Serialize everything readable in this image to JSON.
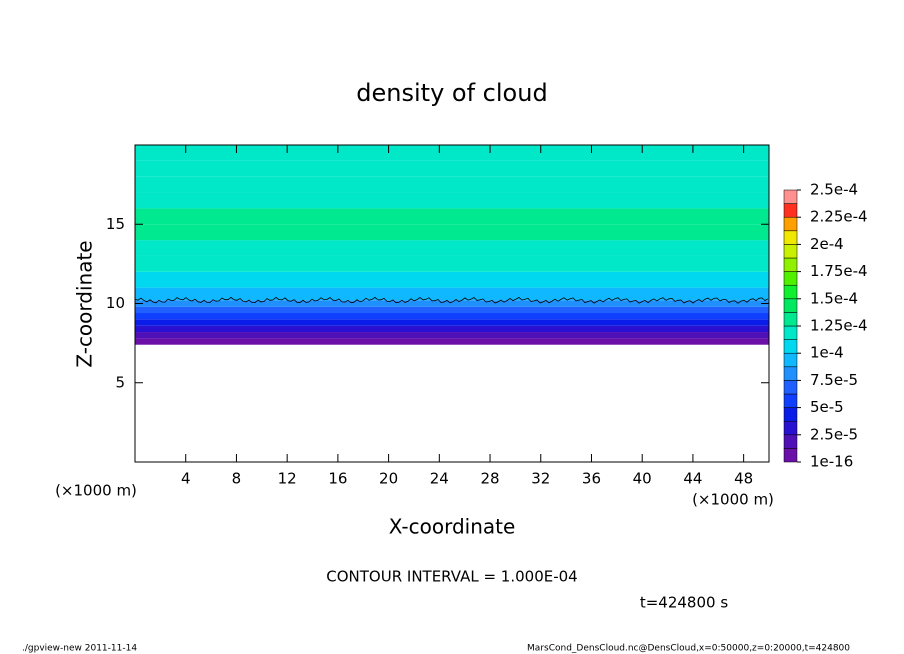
{
  "chart_data": {
    "type": "contour",
    "title": "density of cloud",
    "x_label": "X-coordinate",
    "y_label": "Z-coordinate",
    "x_unit": "(×1000 m)",
    "y_unit": "(×1000 m)",
    "xlim": [
      0,
      50
    ],
    "ylim": [
      0,
      20
    ],
    "xticks": [
      4,
      8,
      12,
      16,
      20,
      24,
      28,
      32,
      36,
      40,
      44,
      48
    ],
    "yticks": [
      5,
      10,
      15
    ],
    "profile": {
      "z": [
        7.4,
        7.8,
        8.2,
        8.6,
        9.0,
        9.4,
        9.8,
        10.2,
        11,
        12,
        13,
        14,
        15,
        16,
        17,
        18,
        19,
        20
      ],
      "values": [
        5e-06,
        2e-05,
        3e-05,
        4.5e-05,
        6e-05,
        7e-05,
        8.5e-05,
        0.0001,
        0.00011,
        0.00012,
        0.000125,
        0.00013,
        0.00013,
        0.000125,
        0.000125,
        0.00012,
        0.000125,
        0.00012
      ]
    },
    "contour_level": 0.0001,
    "colorbar": {
      "ticks": [
        {
          "value": 1e-16,
          "label": "1e-16"
        },
        {
          "value": 2.5e-05,
          "label": "2.5e-5"
        },
        {
          "value": 5e-05,
          "label": "5e-5"
        },
        {
          "value": 7.5e-05,
          "label": "7.5e-5"
        },
        {
          "value": 0.0001,
          "label": "1e-4"
        },
        {
          "value": 0.000125,
          "label": "1.25e-4"
        },
        {
          "value": 0.00015,
          "label": "1.5e-4"
        },
        {
          "value": 0.000175,
          "label": "1.75e-4"
        },
        {
          "value": 0.0002,
          "label": "2e-4"
        },
        {
          "value": 0.000225,
          "label": "2.25e-4"
        },
        {
          "value": 0.00025,
          "label": "2.5e-4"
        }
      ],
      "colors": [
        "#6a10a8",
        "#5010b8",
        "#2a10d0",
        "#0a1ce8",
        "#1040ff",
        "#2060ff",
        "#2090ff",
        "#10b8ff",
        "#00d8f0",
        "#00e8c8",
        "#00e890",
        "#00e860",
        "#10f030",
        "#50f000",
        "#90f000",
        "#c8f000",
        "#f0e800",
        "#ffa000",
        "#ff3020",
        "#ff9090"
      ]
    },
    "contour_interval": "CONTOUR INTERVAL = 1.000E-04",
    "time": "t=424800 s",
    "footer_left": "./gpview-new  2011-11-14",
    "footer_right": "MarsCond_DensCloud.nc@DensCloud,x=0:50000,z=0:20000,t=424800"
  }
}
